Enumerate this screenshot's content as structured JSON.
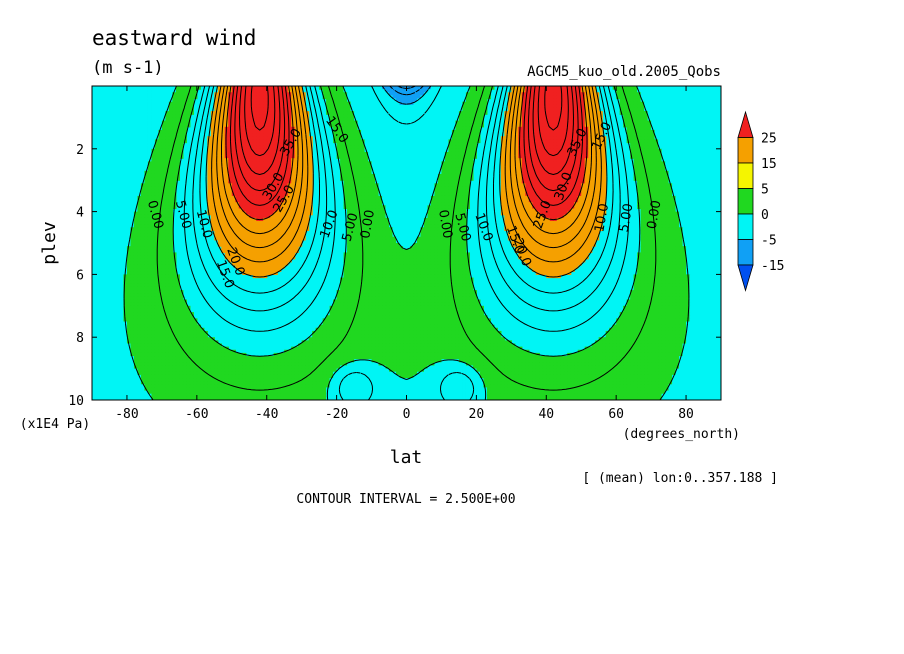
{
  "chart_data": {
    "type": "heatmap",
    "title": "eastward wind",
    "units": "(m s-1)",
    "run_label": "AGCM5_kuo_old.2005_Qobs",
    "xlabel": "lat",
    "x_unit": "(degrees_north)",
    "ylabel": "plev",
    "y_unit": "(x1E4 Pa)",
    "x_ticks": [
      -80,
      -60,
      -40,
      -20,
      0,
      20,
      40,
      60,
      80
    ],
    "x_tick_labels": [
      "-80",
      "-60",
      "-40",
      "-20",
      "0",
      "20",
      "40",
      "60",
      "80"
    ],
    "y_ticks": [
      2,
      4,
      6,
      8,
      10
    ],
    "y_tick_labels": [
      "2",
      "4",
      "6",
      "8",
      "10"
    ],
    "xlim": [
      -90,
      90
    ],
    "ylim": [
      10,
      0
    ],
    "averaging_note": "[ (mean) lon:0..357.188 ]",
    "contour_interval_text": "CONTOUR INTERVAL = 2.500E+00",
    "contour_interval": 2.5,
    "colorbar": {
      "labels": [
        "25",
        "15",
        "5",
        "0",
        "-5",
        "-15"
      ],
      "levels": [
        25,
        15,
        5,
        0,
        -5,
        -15
      ],
      "colors": [
        "#f02020",
        "#f5a000",
        "#f5f500",
        "#20d820",
        "#00f5f5",
        "#10a0f5",
        "#0050f0"
      ]
    },
    "fill_levels": [
      -15,
      -5,
      0,
      5,
      15,
      25
    ],
    "jets": [
      {
        "lat": -42,
        "plev": 0.3,
        "max_value": 40
      },
      {
        "lat": 42,
        "plev": 0.3,
        "max_value": 40
      }
    ],
    "contour_labels": [
      {
        "text": "35.0",
        "lat": -33,
        "plev": 1.8,
        "rotate": -60
      },
      {
        "text": "15.0",
        "lat": -20,
        "plev": 1.4,
        "rotate": 55
      },
      {
        "text": "30.0",
        "lat": -38,
        "plev": 3.2,
        "rotate": -60
      },
      {
        "text": "25.0",
        "lat": -35,
        "plev": 3.6,
        "rotate": -60
      },
      {
        "text": "0.00",
        "lat": -72,
        "plev": 4.1,
        "rotate": 75
      },
      {
        "text": "5.00",
        "lat": -64,
        "plev": 4.1,
        "rotate": 75
      },
      {
        "text": "10.0",
        "lat": -58,
        "plev": 4.4,
        "rotate": 75
      },
      {
        "text": "20.0",
        "lat": -49,
        "plev": 5.6,
        "rotate": 70
      },
      {
        "text": "15.0",
        "lat": -52,
        "plev": 6.0,
        "rotate": 70
      },
      {
        "text": "10.0",
        "lat": -22,
        "plev": 4.4,
        "rotate": -70
      },
      {
        "text": "5.00",
        "lat": -16,
        "plev": 4.5,
        "rotate": -75
      },
      {
        "text": "0.00",
        "lat": -11,
        "plev": 4.4,
        "rotate": -80
      },
      {
        "text": "0.00",
        "lat": 11,
        "plev": 4.4,
        "rotate": 80
      },
      {
        "text": "5.00",
        "lat": 16,
        "plev": 4.5,
        "rotate": 75
      },
      {
        "text": "10.0",
        "lat": 22,
        "plev": 4.5,
        "rotate": 70
      },
      {
        "text": "15.0",
        "lat": 31,
        "plev": 4.9,
        "rotate": 70
      },
      {
        "text": "20.0",
        "lat": 33,
        "plev": 5.3,
        "rotate": 70
      },
      {
        "text": "25.0",
        "lat": 39,
        "plev": 4.1,
        "rotate": -70
      },
      {
        "text": "30.0",
        "lat": 45,
        "plev": 3.2,
        "rotate": -70
      },
      {
        "text": "35.0",
        "lat": 49,
        "plev": 1.8,
        "rotate": -65
      },
      {
        "text": "15.0",
        "lat": 56,
        "plev": 1.6,
        "rotate": -65
      },
      {
        "text": "10.0",
        "lat": 56,
        "plev": 4.2,
        "rotate": -80
      },
      {
        "text": "5.00",
        "lat": 63,
        "plev": 4.2,
        "rotate": -80
      },
      {
        "text": "0.00",
        "lat": 71,
        "plev": 4.1,
        "rotate": -80
      }
    ],
    "grid": false
  }
}
